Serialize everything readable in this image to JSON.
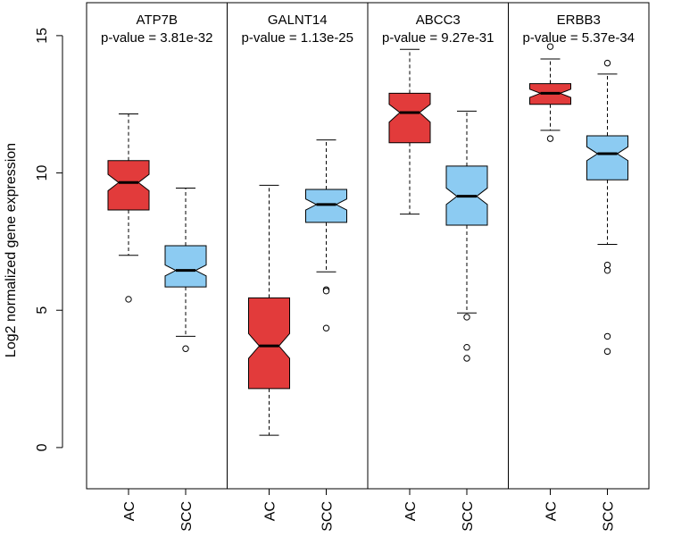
{
  "chart_data": {
    "type": "boxplot",
    "ylabel": "Log2 normalized gene expression",
    "ylim": [
      -1.5,
      16.2
    ],
    "yticks": [
      0,
      5,
      10,
      15
    ],
    "colors": {
      "AC": "#e23b3b",
      "SCC": "#8ccbf2"
    },
    "categories": [
      "AC",
      "SCC"
    ],
    "panels": [
      {
        "gene": "ATP7B",
        "pvalue": "p-value = 3.81e-32",
        "boxes": [
          {
            "group": "AC",
            "whisker_low": 7.0,
            "q1": 8.65,
            "median": 9.65,
            "q3": 10.45,
            "whisker_high": 12.15,
            "notch": [
              9.35,
              9.95
            ],
            "outliers": [
              5.4
            ]
          },
          {
            "group": "SCC",
            "whisker_low": 4.05,
            "q1": 5.85,
            "median": 6.45,
            "q3": 7.35,
            "whisker_high": 9.45,
            "notch": [
              6.25,
              6.65
            ],
            "outliers": [
              3.6
            ]
          }
        ]
      },
      {
        "gene": "GALNT14",
        "pvalue": "p-value = 1.13e-25",
        "boxes": [
          {
            "group": "AC",
            "whisker_low": 0.45,
            "q1": 2.15,
            "median": 3.7,
            "q3": 5.45,
            "whisker_high": 9.55,
            "notch": [
              3.25,
              4.15
            ],
            "outliers": []
          },
          {
            "group": "SCC",
            "whisker_low": 6.4,
            "q1": 8.2,
            "median": 8.85,
            "q3": 9.4,
            "whisker_high": 11.2,
            "notch": [
              8.65,
              9.05
            ],
            "outliers": [
              5.75,
              5.7,
              4.35
            ]
          }
        ]
      },
      {
        "gene": "ABCC3",
        "pvalue": "p-value = 9.27e-31",
        "boxes": [
          {
            "group": "AC",
            "whisker_low": 8.5,
            "q1": 11.1,
            "median": 12.2,
            "q3": 12.9,
            "whisker_high": 14.5,
            "notch": [
              11.85,
              12.5
            ],
            "outliers": []
          },
          {
            "group": "SCC",
            "whisker_low": 4.9,
            "q1": 8.1,
            "median": 9.15,
            "q3": 10.25,
            "whisker_high": 12.25,
            "notch": [
              8.85,
              9.45
            ],
            "outliers": [
              4.75,
              3.65,
              3.25
            ]
          }
        ]
      },
      {
        "gene": "ERBB3",
        "pvalue": "p-value = 5.37e-34",
        "boxes": [
          {
            "group": "AC",
            "whisker_low": 11.55,
            "q1": 12.5,
            "median": 12.9,
            "q3": 13.25,
            "whisker_high": 14.15,
            "notch": [
              12.75,
              13.05
            ],
            "outliers": [
              11.25,
              14.6
            ]
          },
          {
            "group": "SCC",
            "whisker_low": 7.4,
            "q1": 9.75,
            "median": 10.7,
            "q3": 11.35,
            "whisker_high": 13.6,
            "notch": [
              10.45,
              10.95
            ],
            "outliers": [
              6.65,
              6.45,
              4.05,
              3.5,
              14.0
            ]
          }
        ]
      }
    ]
  }
}
